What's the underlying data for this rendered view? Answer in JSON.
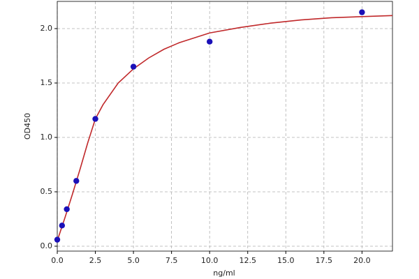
{
  "chart_data": {
    "type": "scatter",
    "xlabel": "ng/ml",
    "ylabel": "OD450",
    "xlim": [
      0,
      22
    ],
    "ylim": [
      -0.045,
      2.25
    ],
    "xticks": [
      {
        "value": 0,
        "label": "0.0"
      },
      2.5,
      {
        "value": 5,
        "label": "5.0"
      },
      7.5,
      {
        "value": 10,
        "label": "10.0"
      },
      12.5,
      {
        "value": 15,
        "label": "15.0"
      },
      17.5,
      {
        "value": 20,
        "label": "20.0"
      }
    ],
    "yticks": [
      {
        "value": 0,
        "label": "0.0"
      },
      0.5,
      {
        "value": 1,
        "label": "1.0"
      },
      1.5,
      {
        "value": 2,
        "label": "2.0"
      }
    ],
    "grid": true,
    "series": [
      {
        "style": "line",
        "color": "#c0282a",
        "x": [
          0,
          0.5,
          1,
          1.5,
          2,
          2.5,
          3,
          4,
          5,
          6,
          7,
          8,
          10,
          12,
          14,
          16,
          18,
          20,
          22
        ],
        "values": [
          0.05,
          0.26,
          0.48,
          0.71,
          0.95,
          1.17,
          1.3,
          1.5,
          1.63,
          1.73,
          1.81,
          1.87,
          1.96,
          2.01,
          2.05,
          2.08,
          2.1,
          2.11,
          2.12
        ]
      },
      {
        "style": "markers",
        "color": "#1a10b8",
        "x": [
          0,
          0.3125,
          0.625,
          1.25,
          2.5,
          5,
          10,
          20
        ],
        "values": [
          0.06,
          0.19,
          0.34,
          0.6,
          1.17,
          1.65,
          1.88,
          2.15
        ]
      }
    ]
  }
}
